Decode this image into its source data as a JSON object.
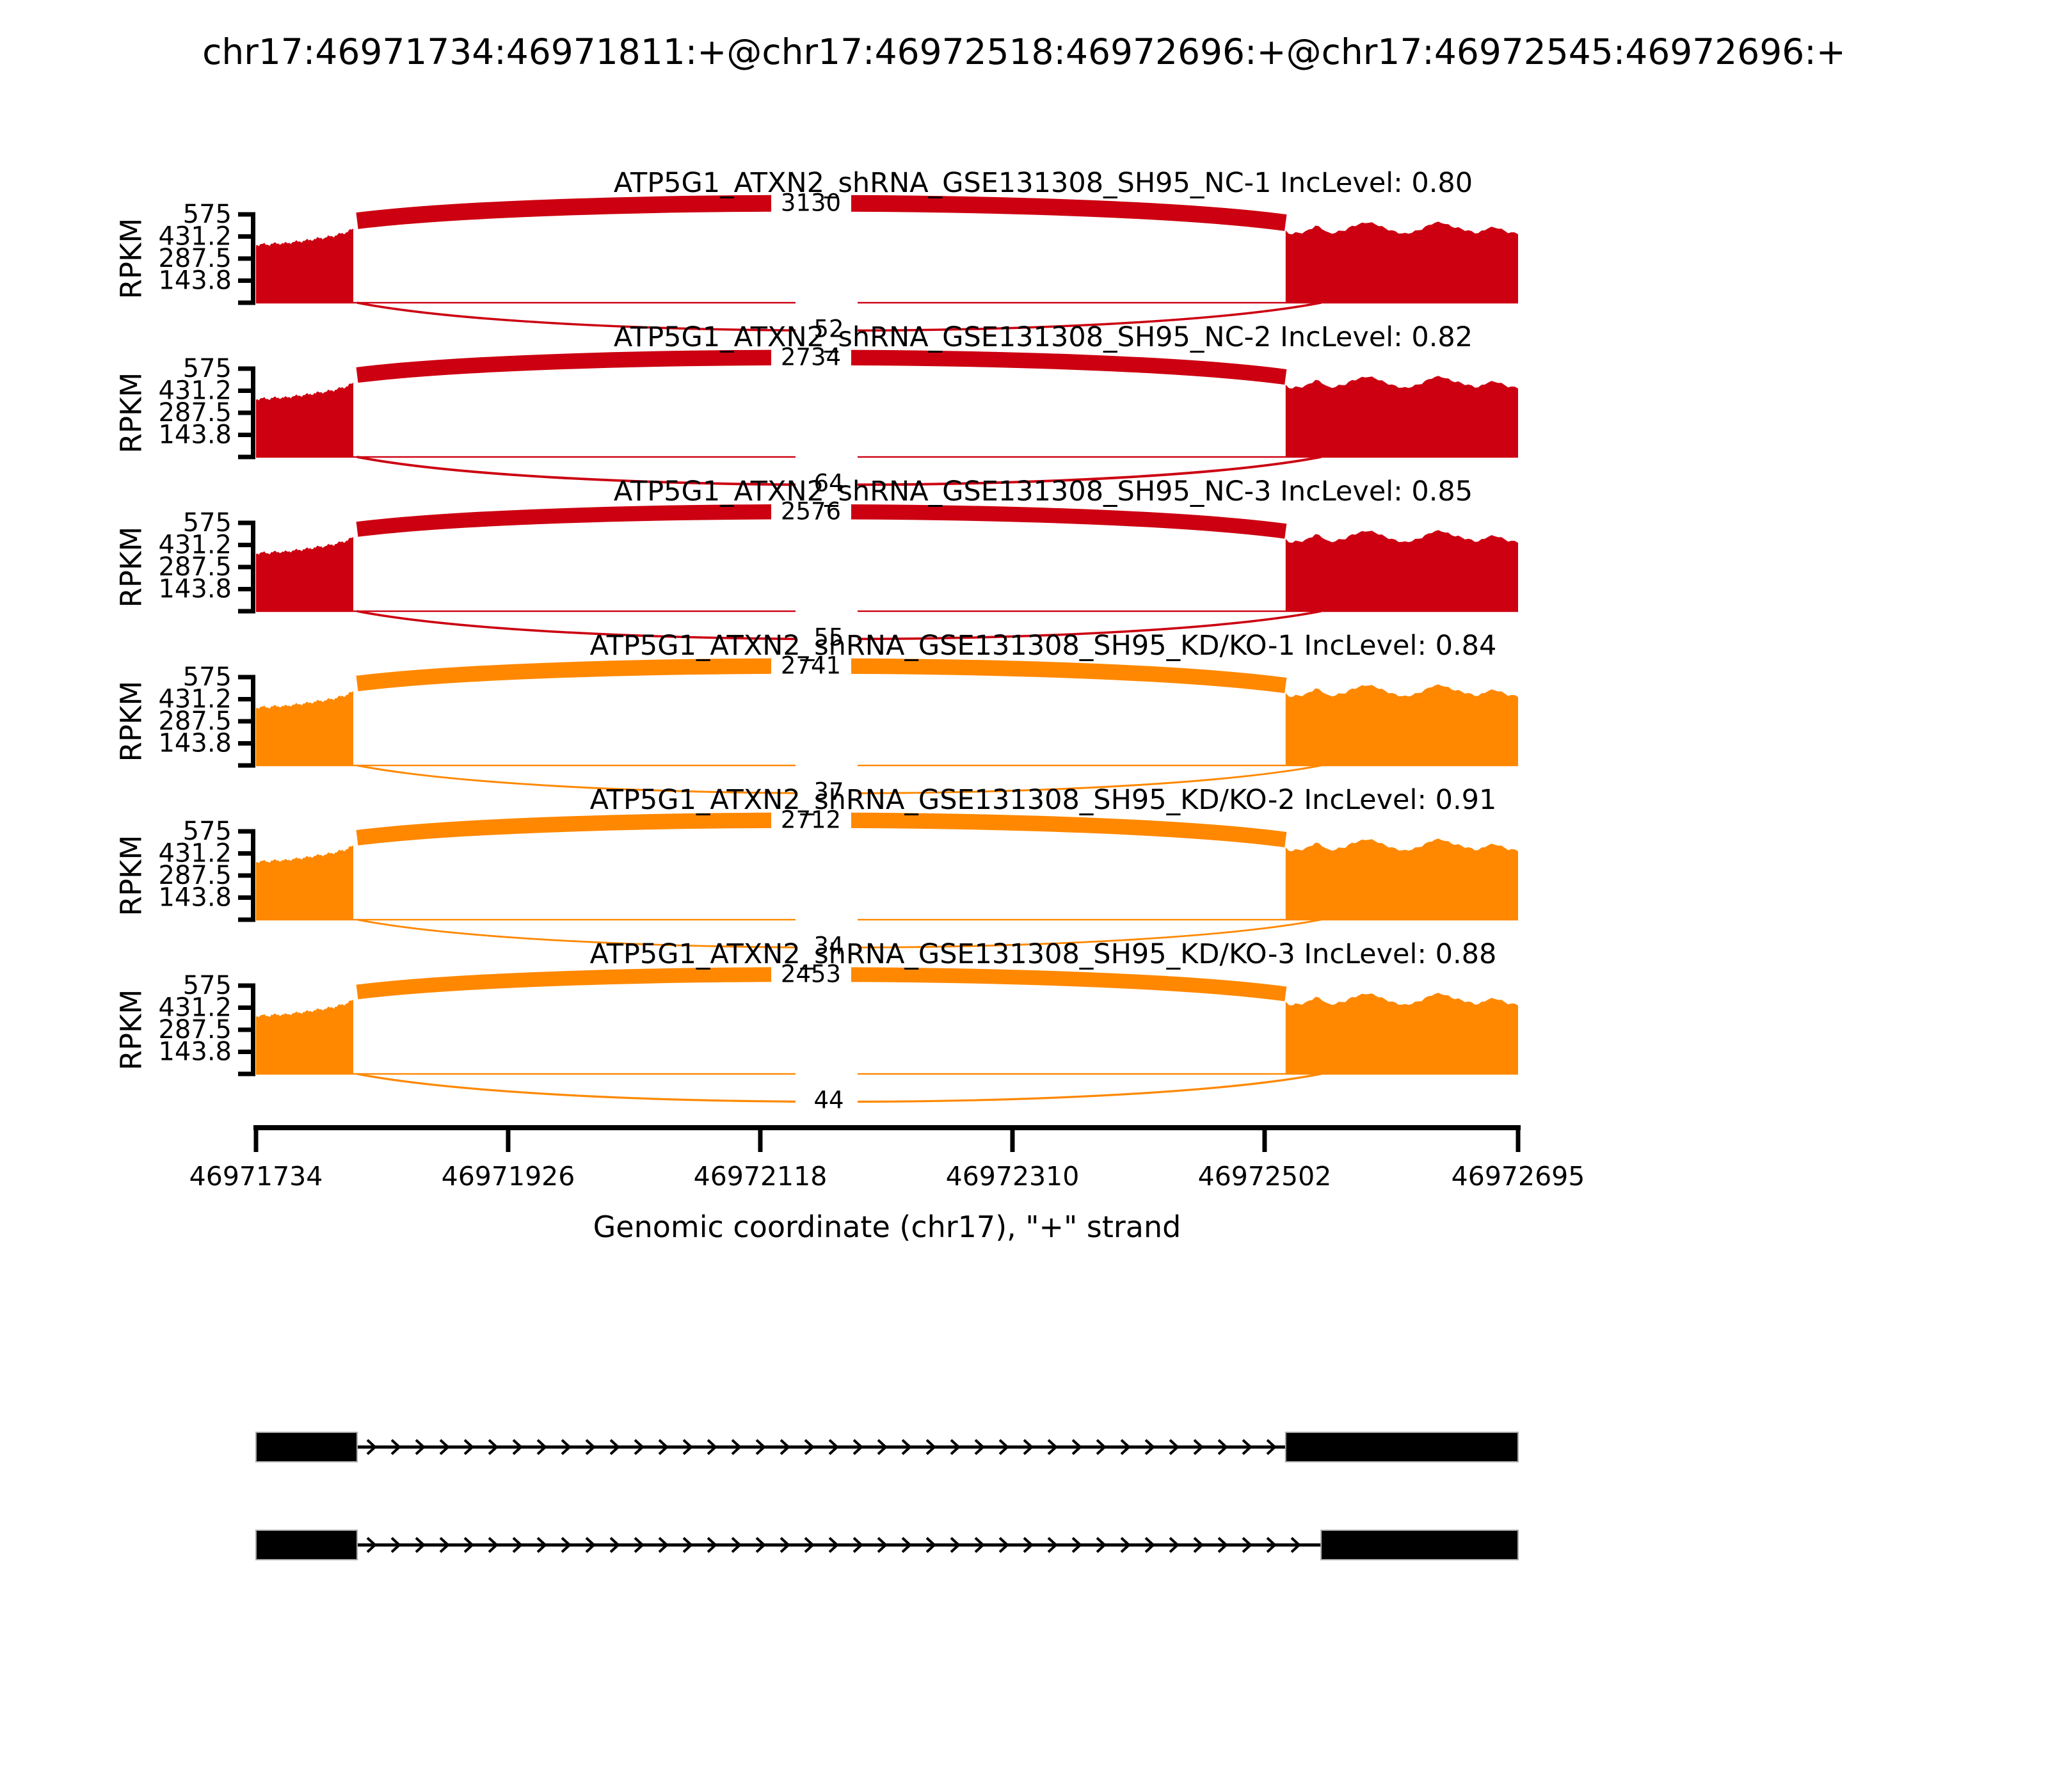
{
  "chart_data": {
    "type": "sashimi",
    "title": "chr17:46971734:46971811:+@chr17:46972518:46972696:+@chr17:46972545:46972696:+",
    "x_axis": {
      "label": "Genomic coordinate (chr17), \"+\" strand",
      "ticks": [
        46971734,
        46971926,
        46972118,
        46972310,
        46972502,
        46972695
      ],
      "domain": [
        46971734,
        46972695
      ],
      "grid": false
    },
    "y_axis": {
      "label": "RPKM",
      "ticks": [
        "575",
        "431.2",
        "287.5",
        "143.8"
      ],
      "max": 575
    },
    "colors": {
      "group1": "#CC0011",
      "group2": "#FF8800",
      "counts_text": "#000000",
      "transcript": "#000000"
    },
    "inc_label_prefix": "IncLevel: ",
    "exons": {
      "upstream": [
        46971734,
        46971811
      ],
      "inclusion_downstream_start": 46972518,
      "skipping_downstream_start": 46972545,
      "region_end": 46972696
    },
    "tracks": [
      {
        "sample": "ATP5G1_ATXN2_shRNA_GSE131308_SH95_NC-1",
        "inc_level": "0.80",
        "color": "#CC0011",
        "inclusion_junction_reads": 3130,
        "skipping_junction_reads": 52
      },
      {
        "sample": "ATP5G1_ATXN2_shRNA_GSE131308_SH95_NC-2",
        "inc_level": "0.82",
        "color": "#CC0011",
        "inclusion_junction_reads": 2734,
        "skipping_junction_reads": 64
      },
      {
        "sample": "ATP5G1_ATXN2_shRNA_GSE131308_SH95_NC-3",
        "inc_level": "0.85",
        "color": "#CC0011",
        "inclusion_junction_reads": 2576,
        "skipping_junction_reads": 55
      },
      {
        "sample": "ATP5G1_ATXN2_shRNA_GSE131308_SH95_KD/KO-1",
        "inc_level": "0.84",
        "color": "#FF8800",
        "inclusion_junction_reads": 2741,
        "skipping_junction_reads": 37
      },
      {
        "sample": "ATP5G1_ATXN2_shRNA_GSE131308_SH95_KD/KO-2",
        "inc_level": "0.91",
        "color": "#FF8800",
        "inclusion_junction_reads": 2712,
        "skipping_junction_reads": 34
      },
      {
        "sample": "ATP5G1_ATXN2_shRNA_GSE131308_SH95_KD/KO-3",
        "inc_level": "0.88",
        "color": "#FF8800",
        "inclusion_junction_reads": 2453,
        "skipping_junction_reads": 44
      }
    ],
    "transcripts": [
      {
        "exons": [
          [
            46971734,
            46971811
          ],
          [
            46972518,
            46972696
          ]
        ]
      },
      {
        "exons": [
          [
            46971734,
            46971811
          ],
          [
            46972545,
            46972696
          ]
        ]
      }
    ],
    "coverage_profile": {
      "left": [
        [
          0,
          0.655
        ],
        [
          0.06,
          0.662
        ],
        [
          0.12,
          0.659
        ],
        [
          0.18,
          0.668
        ],
        [
          0.24,
          0.673
        ],
        [
          0.3,
          0.67
        ],
        [
          0.36,
          0.684
        ],
        [
          0.42,
          0.69
        ],
        [
          0.48,
          0.7
        ],
        [
          0.54,
          0.707
        ],
        [
          0.6,
          0.722
        ],
        [
          0.66,
          0.73
        ],
        [
          0.72,
          0.74
        ],
        [
          0.78,
          0.752
        ],
        [
          0.84,
          0.77
        ],
        [
          0.9,
          0.787
        ],
        [
          0.95,
          0.81
        ],
        [
          1,
          0.833
        ]
      ],
      "right": [
        [
          0,
          0.8
        ],
        [
          0.02,
          0.768
        ],
        [
          0.05,
          0.79
        ],
        [
          0.08,
          0.8
        ],
        [
          0.11,
          0.85
        ],
        [
          0.13,
          0.88
        ],
        [
          0.16,
          0.838
        ],
        [
          0.19,
          0.77
        ],
        [
          0.22,
          0.795
        ],
        [
          0.25,
          0.81
        ],
        [
          0.29,
          0.875
        ],
        [
          0.32,
          0.9
        ],
        [
          0.35,
          0.922
        ],
        [
          0.39,
          0.885
        ],
        [
          0.43,
          0.83
        ],
        [
          0.47,
          0.8
        ],
        [
          0.51,
          0.785
        ],
        [
          0.55,
          0.81
        ],
        [
          0.59,
          0.84
        ],
        [
          0.63,
          0.89
        ],
        [
          0.67,
          0.905
        ],
        [
          0.71,
          0.87
        ],
        [
          0.75,
          0.85
        ],
        [
          0.79,
          0.815
        ],
        [
          0.83,
          0.78
        ],
        [
          0.87,
          0.838
        ],
        [
          0.91,
          0.852
        ],
        [
          0.95,
          0.81
        ],
        [
          1,
          0.79
        ]
      ]
    }
  }
}
